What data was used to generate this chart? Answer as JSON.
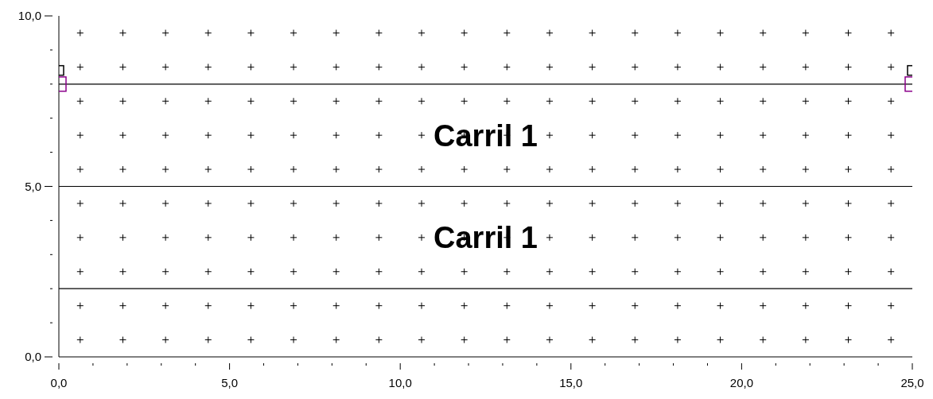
{
  "chart_data": {
    "type": "scatter",
    "series": [
      {
        "marker": "cross",
        "color": "#000000",
        "x": [
          0.625,
          1.875,
          3.125,
          4.375,
          5.625,
          6.875,
          8.125,
          9.375,
          10.625,
          11.875,
          13.125,
          14.375,
          15.625,
          16.875,
          18.125,
          19.375,
          20.625,
          21.875,
          23.125,
          24.375,
          0.625,
          1.875,
          3.125,
          4.375,
          5.625,
          6.875,
          8.125,
          9.375,
          10.625,
          11.875,
          13.125,
          14.375,
          15.625,
          16.875,
          18.125,
          19.375,
          20.625,
          21.875,
          23.125,
          24.375,
          0.625,
          1.875,
          3.125,
          4.375,
          5.625,
          6.875,
          8.125,
          9.375,
          10.625,
          11.875,
          13.125,
          14.375,
          15.625,
          16.875,
          18.125,
          19.375,
          20.625,
          21.875,
          23.125,
          24.375,
          0.625,
          1.875,
          3.125,
          4.375,
          5.625,
          6.875,
          8.125,
          9.375,
          10.625,
          11.875,
          13.125,
          14.375,
          15.625,
          16.875,
          18.125,
          19.375,
          20.625,
          21.875,
          23.125,
          24.375,
          0.625,
          1.875,
          3.125,
          4.375,
          5.625,
          6.875,
          8.125,
          9.375,
          10.625,
          11.875,
          13.125,
          14.375,
          15.625,
          16.875,
          18.125,
          19.375,
          20.625,
          21.875,
          23.125,
          24.375,
          0.625,
          1.875,
          3.125,
          4.375,
          5.625,
          6.875,
          8.125,
          9.375,
          10.625,
          11.875,
          13.125,
          14.375,
          15.625,
          16.875,
          18.125,
          19.375,
          20.625,
          21.875,
          23.125,
          24.375,
          0.625,
          1.875,
          3.125,
          4.375,
          5.625,
          6.875,
          8.125,
          9.375,
          10.625,
          11.875,
          13.125,
          14.375,
          15.625,
          16.875,
          18.125,
          19.375,
          20.625,
          21.875,
          23.125,
          24.375,
          0.625,
          1.875,
          3.125,
          4.375,
          5.625,
          6.875,
          8.125,
          9.375,
          10.625,
          11.875,
          13.125,
          14.375,
          15.625,
          16.875,
          18.125,
          19.375,
          20.625,
          21.875,
          23.125,
          24.375,
          0.625,
          1.875,
          3.125,
          4.375,
          5.625,
          6.875,
          8.125,
          9.375,
          10.625,
          11.875,
          13.125,
          14.375,
          15.625,
          16.875,
          18.125,
          19.375,
          20.625,
          21.875,
          23.125,
          24.375,
          0.625,
          1.875,
          3.125,
          4.375,
          5.625,
          6.875,
          8.125,
          9.375,
          10.625,
          11.875,
          13.125,
          14.375,
          15.625,
          16.875,
          18.125,
          19.375,
          20.625,
          21.875,
          23.125,
          24.375
        ],
        "values": [
          0.5,
          0.5,
          0.5,
          0.5,
          0.5,
          0.5,
          0.5,
          0.5,
          0.5,
          0.5,
          0.5,
          0.5,
          0.5,
          0.5,
          0.5,
          0.5,
          0.5,
          0.5,
          0.5,
          0.5,
          1.5,
          1.5,
          1.5,
          1.5,
          1.5,
          1.5,
          1.5,
          1.5,
          1.5,
          1.5,
          1.5,
          1.5,
          1.5,
          1.5,
          1.5,
          1.5,
          1.5,
          1.5,
          1.5,
          1.5,
          2.5,
          2.5,
          2.5,
          2.5,
          2.5,
          2.5,
          2.5,
          2.5,
          2.5,
          2.5,
          2.5,
          2.5,
          2.5,
          2.5,
          2.5,
          2.5,
          2.5,
          2.5,
          2.5,
          2.5,
          3.5,
          3.5,
          3.5,
          3.5,
          3.5,
          3.5,
          3.5,
          3.5,
          3.5,
          3.5,
          3.5,
          3.5,
          3.5,
          3.5,
          3.5,
          3.5,
          3.5,
          3.5,
          3.5,
          3.5,
          4.5,
          4.5,
          4.5,
          4.5,
          4.5,
          4.5,
          4.5,
          4.5,
          4.5,
          4.5,
          4.5,
          4.5,
          4.5,
          4.5,
          4.5,
          4.5,
          4.5,
          4.5,
          4.5,
          4.5,
          5.5,
          5.5,
          5.5,
          5.5,
          5.5,
          5.5,
          5.5,
          5.5,
          5.5,
          5.5,
          5.5,
          5.5,
          5.5,
          5.5,
          5.5,
          5.5,
          5.5,
          5.5,
          5.5,
          5.5,
          6.5,
          6.5,
          6.5,
          6.5,
          6.5,
          6.5,
          6.5,
          6.5,
          6.5,
          6.5,
          6.5,
          6.5,
          6.5,
          6.5,
          6.5,
          6.5,
          6.5,
          6.5,
          6.5,
          6.5,
          7.5,
          7.5,
          7.5,
          7.5,
          7.5,
          7.5,
          7.5,
          7.5,
          7.5,
          7.5,
          7.5,
          7.5,
          7.5,
          7.5,
          7.5,
          7.5,
          7.5,
          7.5,
          7.5,
          7.5,
          8.5,
          8.5,
          8.5,
          8.5,
          8.5,
          8.5,
          8.5,
          8.5,
          8.5,
          8.5,
          8.5,
          8.5,
          8.5,
          8.5,
          8.5,
          8.5,
          8.5,
          8.5,
          8.5,
          8.5,
          9.5,
          9.5,
          9.5,
          9.5,
          9.5,
          9.5,
          9.5,
          9.5,
          9.5,
          9.5,
          9.5,
          9.5,
          9.5,
          9.5,
          9.5,
          9.5,
          9.5,
          9.5,
          9.5,
          9.5
        ]
      },
      {
        "marker": "square",
        "color": "#000000",
        "x": [
          0,
          25
        ],
        "values": [
          8.4,
          8.4
        ]
      },
      {
        "marker": "square",
        "color": "#8b008b",
        "x": [
          0,
          25
        ],
        "values": [
          8.0,
          8.0
        ]
      }
    ],
    "xlim": [
      0,
      25
    ],
    "xticks": [
      {
        "value": 0,
        "label": "0,0"
      },
      {
        "value": 1,
        "label": null
      },
      {
        "value": 2,
        "label": null
      },
      {
        "value": 3,
        "label": null
      },
      {
        "value": 4,
        "label": null
      },
      {
        "value": 5,
        "label": "5,0"
      },
      {
        "value": 6,
        "label": null
      },
      {
        "value": 7,
        "label": null
      },
      {
        "value": 8,
        "label": null
      },
      {
        "value": 9,
        "label": null
      },
      {
        "value": 10,
        "label": "10,0"
      },
      {
        "value": 11,
        "label": null
      },
      {
        "value": 12,
        "label": null
      },
      {
        "value": 13,
        "label": null
      },
      {
        "value": 14,
        "label": null
      },
      {
        "value": 15,
        "label": "15,0"
      },
      {
        "value": 16,
        "label": null
      },
      {
        "value": 17,
        "label": null
      },
      {
        "value": 18,
        "label": null
      },
      {
        "value": 19,
        "label": null
      },
      {
        "value": 20,
        "label": "20,0"
      },
      {
        "value": 21,
        "label": null
      },
      {
        "value": 22,
        "label": null
      },
      {
        "value": 23,
        "label": null
      },
      {
        "value": 24,
        "label": null
      },
      {
        "value": 25,
        "label": "25,0"
      }
    ],
    "ylim": [
      0,
      10
    ],
    "yticks": [
      {
        "value": 0,
        "label": "0,0"
      },
      {
        "value": 1,
        "label": null
      },
      {
        "value": 2,
        "label": null
      },
      {
        "value": 3,
        "label": null
      },
      {
        "value": 4,
        "label": null
      },
      {
        "value": 5,
        "label": "5,0"
      },
      {
        "value": 6,
        "label": null
      },
      {
        "value": 7,
        "label": null
      },
      {
        "value": 8,
        "label": null
      },
      {
        "value": 9,
        "label": null
      },
      {
        "value": 10,
        "label": "10,0"
      }
    ],
    "ref_lines": [
      {
        "axis": "y",
        "value": 8,
        "color": "#000000"
      },
      {
        "axis": "y",
        "value": 5,
        "color": "#000000"
      },
      {
        "axis": "y",
        "value": 2,
        "color": "#000000"
      }
    ],
    "annotations": [
      "Carril 1",
      "Carril 1"
    ]
  }
}
